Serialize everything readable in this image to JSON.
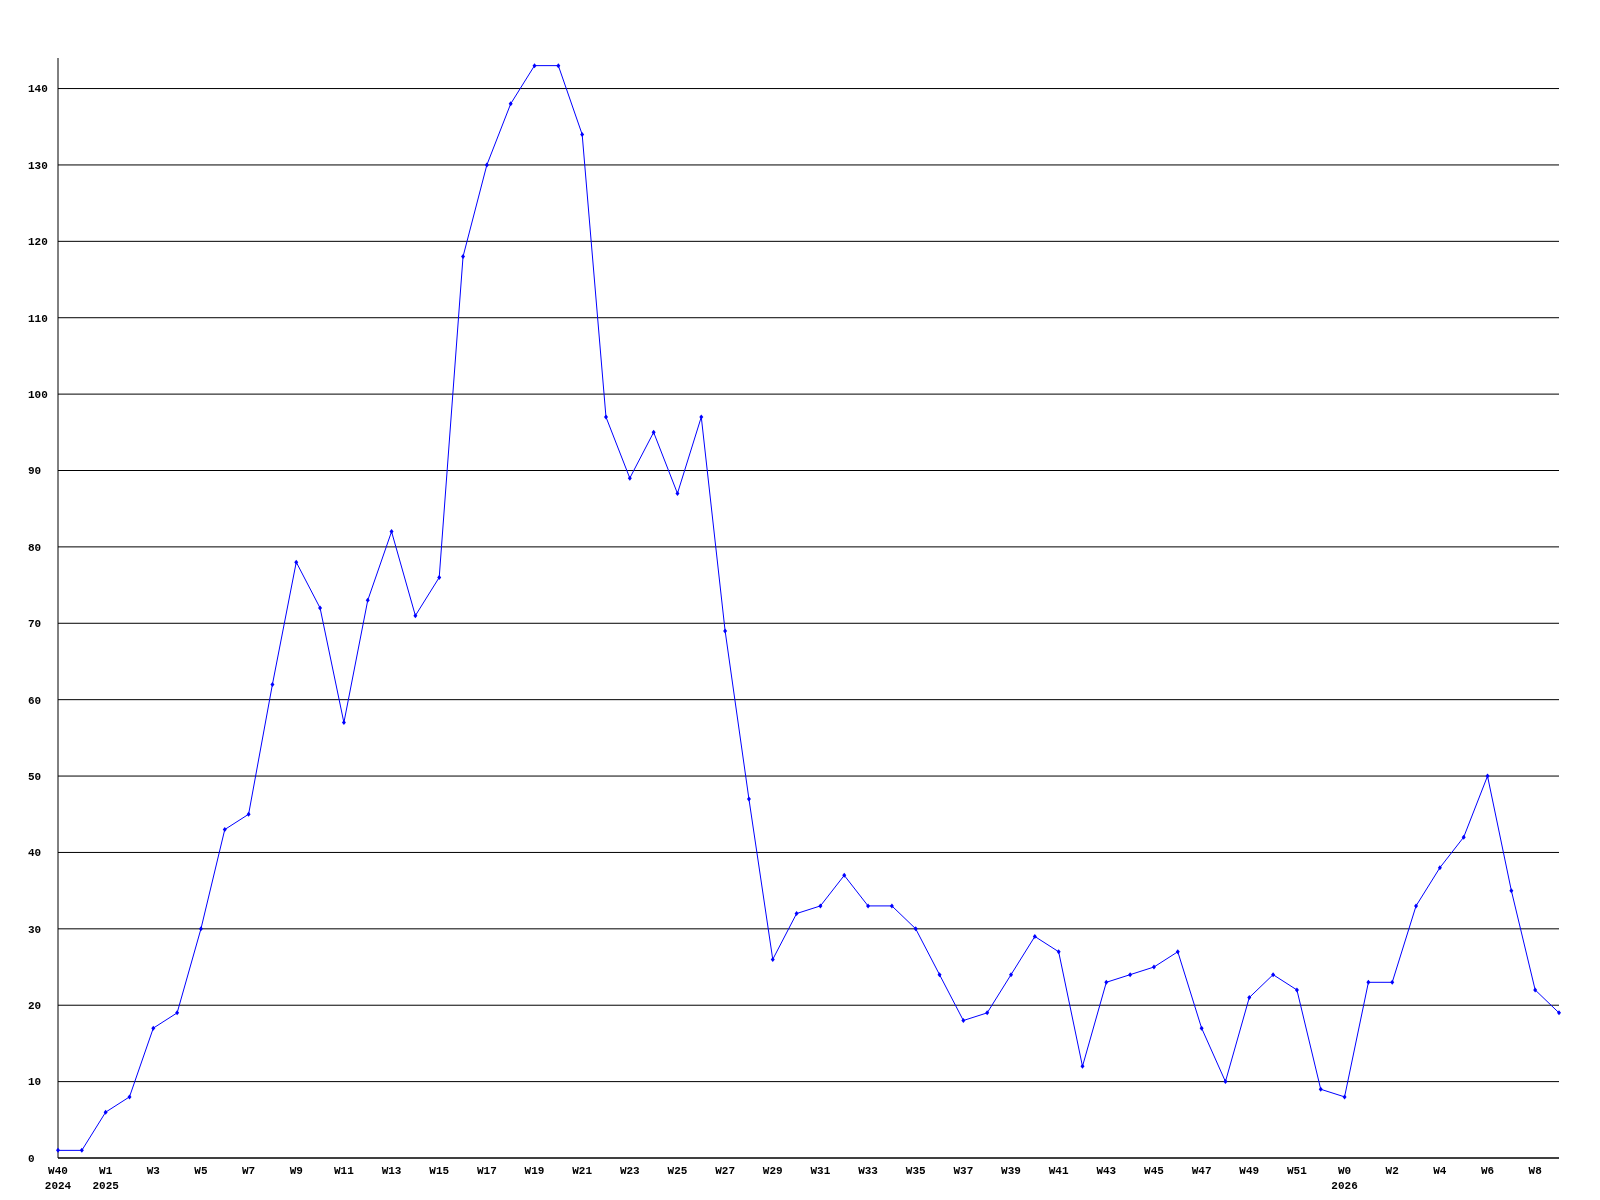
{
  "chart_data": {
    "type": "line",
    "categories": [
      "W40\n2024",
      null,
      "W1\n2025",
      null,
      "W3",
      null,
      "W5",
      null,
      "W7",
      null,
      "W9",
      null,
      "W11",
      null,
      "W13",
      null,
      "W15",
      null,
      "W17",
      null,
      "W19",
      null,
      "W21",
      null,
      "W23",
      null,
      "W25",
      null,
      "W27",
      null,
      "W29",
      null,
      "W31",
      null,
      "W33",
      null,
      "W35",
      null,
      "W37",
      null,
      "W39",
      null,
      "W41",
      null,
      "W43",
      null,
      "W45",
      null,
      "W47",
      null,
      "W49",
      null,
      "W51",
      null,
      "W0\n2026",
      null,
      "W2",
      null,
      "W4",
      null,
      "W6",
      null,
      "W8",
      null
    ],
    "series": [
      {
        "color": "#0000ff",
        "values": [
          1,
          1,
          6,
          8,
          17,
          19,
          30,
          43,
          45,
          62,
          78,
          72,
          57,
          73,
          82,
          71,
          76,
          118,
          130,
          138,
          143,
          143,
          134,
          97,
          89,
          95,
          87,
          97,
          69,
          47,
          26,
          32,
          33,
          37,
          33,
          33,
          30,
          24,
          18,
          19,
          24,
          29,
          27,
          12,
          23,
          24,
          25,
          27,
          17,
          10,
          21,
          24,
          22,
          9,
          8,
          23,
          23,
          33,
          38,
          42,
          50,
          35,
          22,
          19
        ]
      }
    ],
    "ylim": [
      0,
      144
    ],
    "yticks": [
      0,
      10,
      20,
      30,
      40,
      50,
      60,
      70,
      80,
      90,
      100,
      110,
      120,
      130,
      140
    ],
    "grid": "y",
    "marker": "diamond",
    "line_style": "solid"
  }
}
